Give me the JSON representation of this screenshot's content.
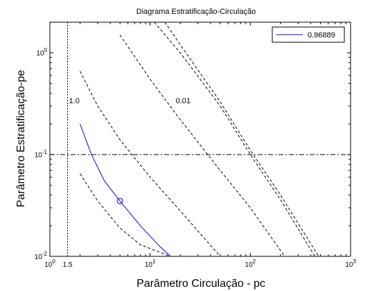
{
  "chart_data": {
    "type": "line",
    "title": "Diagrama Estratificação-Circulação",
    "xlabel": "Parâmetro Circulação - pc",
    "ylabel": "Parâmetro Estratificação-pe",
    "xscale": "log",
    "yscale": "log",
    "xlim": [
      1,
      1000
    ],
    "ylim": [
      0.01,
      2
    ],
    "x_ticks": [
      {
        "value": 1,
        "base": "10",
        "exp": "0"
      },
      {
        "value": 10,
        "base": "10",
        "exp": "1"
      },
      {
        "value": 100,
        "base": "10",
        "exp": "2"
      },
      {
        "value": 1000,
        "base": "10",
        "exp": "3"
      }
    ],
    "y_ticks": [
      {
        "value": 0.01,
        "base": "10",
        "exp": "-2"
      },
      {
        "value": 0.1,
        "base": "10",
        "exp": "-1"
      },
      {
        "value": 1,
        "base": "10",
        "exp": "0"
      }
    ],
    "x_extra_label": {
      "value": 1.5,
      "text": "1.5"
    },
    "legend": {
      "placement": "top-right",
      "entries": [
        "0.96889"
      ]
    },
    "series": [
      {
        "name": "0.96889",
        "color": "#0000ff",
        "style": "solid",
        "x": [
          2,
          2.6,
          3.5,
          5,
          8,
          12,
          16
        ],
        "y": [
          0.2,
          0.1,
          0.055,
          0.035,
          0.02,
          0.013,
          0.01
        ],
        "marker": {
          "x": 5,
          "y": 0.035,
          "shape": "circle"
        }
      }
    ],
    "reference_lines": [
      {
        "kind": "vertical",
        "x": 1.5,
        "style": "dotted"
      },
      {
        "kind": "horizontal",
        "y": 0.1,
        "style": "dashdot"
      },
      {
        "kind": "curve",
        "style": "dashed",
        "x": [
          2,
          3,
          5,
          8,
          16
        ],
        "y": [
          0.065,
          0.035,
          0.019,
          0.013,
          0.01
        ]
      },
      {
        "kind": "curve",
        "style": "dashed",
        "x": [
          2,
          3,
          5,
          10,
          20,
          50
        ],
        "y": [
          0.66,
          0.3,
          0.14,
          0.06,
          0.028,
          0.01
        ]
      },
      {
        "kind": "curve",
        "style": "dashed",
        "x": [
          5,
          10,
          20,
          50,
          100,
          220
        ],
        "y": [
          1.5,
          0.55,
          0.22,
          0.07,
          0.03,
          0.01
        ]
      },
      {
        "kind": "curve",
        "style": "dashed",
        "x": [
          11,
          20,
          50,
          100,
          200,
          440
        ],
        "y": [
          2,
          1,
          0.3,
          0.1,
          0.036,
          0.01
        ]
      },
      {
        "kind": "curve",
        "style": "dashed",
        "x": [
          14,
          20,
          50,
          100,
          200,
          480
        ],
        "y": [
          2,
          1.2,
          0.33,
          0.11,
          0.04,
          0.01
        ]
      }
    ],
    "annotations": [
      {
        "text": "1.0",
        "x": 1.55,
        "y": 0.32
      },
      {
        "text": "0.01",
        "x": 18,
        "y": 0.32
      }
    ]
  }
}
